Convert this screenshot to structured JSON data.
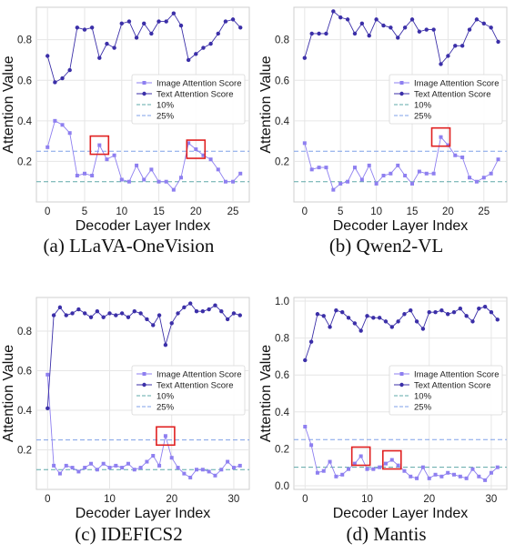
{
  "colors": {
    "image": "#8e7ff0",
    "text": "#3b2fa8",
    "line10": "#5fa8a8",
    "line25": "#7fa0e8",
    "highlight": "#e02020",
    "grid": "#e6e6e6"
  },
  "chart_data": [
    {
      "type": "line",
      "caption": "(a) LLaVA-OneVision",
      "xlabel": "Decoder Layer Index",
      "ylabel": "Attention Value",
      "xlim": [
        -1.5,
        27.2
      ],
      "ylim": [
        0.0,
        0.96
      ],
      "xticks": [
        0,
        5,
        10,
        15,
        20,
        25
      ],
      "yticks": [
        0.2,
        0.4,
        0.6,
        0.8
      ],
      "legend": {
        "position": "center-right",
        "entries": [
          "Image Attention Score",
          "Text Attention Score",
          "10%",
          "25%"
        ]
      },
      "hlines": {
        "ten": 0.1,
        "twentyfive": 0.25
      },
      "highlights": [
        7,
        20
      ],
      "series": [
        {
          "name": "Image Attention Score",
          "values": [
            0.27,
            0.4,
            0.38,
            0.34,
            0.13,
            0.14,
            0.13,
            0.28,
            0.21,
            0.23,
            0.11,
            0.1,
            0.18,
            0.11,
            0.16,
            0.1,
            0.1,
            0.06,
            0.12,
            0.29,
            0.26,
            0.23,
            0.21,
            0.16,
            0.1,
            0.1,
            0.14
          ]
        },
        {
          "name": "Text Attention Score",
          "values": [
            0.72,
            0.59,
            0.61,
            0.65,
            0.86,
            0.85,
            0.86,
            0.71,
            0.78,
            0.76,
            0.88,
            0.89,
            0.81,
            0.88,
            0.83,
            0.89,
            0.89,
            0.93,
            0.87,
            0.7,
            0.73,
            0.76,
            0.78,
            0.83,
            0.89,
            0.9,
            0.86
          ]
        }
      ]
    },
    {
      "type": "line",
      "caption": "(b) Qwen2-VL",
      "xlabel": "Decoder Layer Index",
      "ylabel": "Attention Value",
      "xlim": [
        -1.5,
        28.2
      ],
      "ylim": [
        0.0,
        0.96
      ],
      "xticks": [
        0,
        5,
        10,
        15,
        20,
        25
      ],
      "yticks": [
        0.2,
        0.4,
        0.6,
        0.8
      ],
      "legend": {
        "position": "center-right",
        "entries": [
          "Image Attention Score",
          "Text Attention Score",
          "10%",
          "25%"
        ]
      },
      "hlines": {
        "ten": 0.1,
        "twentyfive": 0.25
      },
      "highlights": [
        19
      ],
      "series": [
        {
          "name": "Image Attention Score",
          "values": [
            0.29,
            0.16,
            0.17,
            0.17,
            0.06,
            0.09,
            0.1,
            0.17,
            0.11,
            0.18,
            0.09,
            0.13,
            0.14,
            0.18,
            0.13,
            0.09,
            0.15,
            0.14,
            0.14,
            0.32,
            0.28,
            0.23,
            0.22,
            0.12,
            0.1,
            0.12,
            0.14,
            0.21
          ]
        },
        {
          "name": "Text Attention Score",
          "values": [
            0.71,
            0.83,
            0.83,
            0.83,
            0.94,
            0.91,
            0.9,
            0.83,
            0.88,
            0.82,
            0.9,
            0.87,
            0.86,
            0.81,
            0.86,
            0.9,
            0.84,
            0.85,
            0.85,
            0.68,
            0.72,
            0.77,
            0.77,
            0.85,
            0.9,
            0.88,
            0.86,
            0.79
          ]
        }
      ]
    },
    {
      "type": "line",
      "caption": "(c) IDEFICS2",
      "xlabel": "Decoder Layer Index",
      "ylabel": "Attention Value",
      "xlim": [
        -1.8,
        32.5
      ],
      "ylim": [
        0.0,
        0.97
      ],
      "xticks": [
        0,
        10,
        20,
        30
      ],
      "yticks": [
        0.2,
        0.4,
        0.6,
        0.8
      ],
      "legend": {
        "position": "center-right",
        "entries": [
          "Image Attention Score",
          "Text Attention Score",
          "10%",
          "25%"
        ]
      },
      "hlines": {
        "ten": 0.1,
        "twentyfive": 0.25
      },
      "highlights": [
        19
      ],
      "series": [
        {
          "name": "Image Attention Score",
          "values": [
            0.58,
            0.12,
            0.08,
            0.12,
            0.11,
            0.09,
            0.11,
            0.13,
            0.1,
            0.13,
            0.11,
            0.12,
            0.11,
            0.13,
            0.1,
            0.11,
            0.14,
            0.17,
            0.12,
            0.27,
            0.16,
            0.11,
            0.08,
            0.06,
            0.1,
            0.1,
            0.09,
            0.07,
            0.1,
            0.14,
            0.11,
            0.12
          ]
        },
        {
          "name": "Text Attention Score",
          "values": [
            0.41,
            0.88,
            0.92,
            0.88,
            0.89,
            0.91,
            0.89,
            0.87,
            0.9,
            0.87,
            0.89,
            0.88,
            0.89,
            0.87,
            0.9,
            0.89,
            0.86,
            0.83,
            0.88,
            0.73,
            0.84,
            0.89,
            0.92,
            0.94,
            0.9,
            0.9,
            0.91,
            0.93,
            0.9,
            0.86,
            0.89,
            0.88
          ]
        }
      ]
    },
    {
      "type": "line",
      "caption": "(d) Mantis",
      "xlabel": "Decoder Layer Index",
      "ylabel": "Attention Value",
      "xlim": [
        -1.8,
        32.5
      ],
      "ylim": [
        -0.02,
        1.02
      ],
      "xticks": [
        0,
        10,
        20,
        30
      ],
      "yticks": [
        0.0,
        0.2,
        0.4,
        0.6,
        0.8,
        1.0
      ],
      "legend": {
        "position": "center-right",
        "entries": [
          "Image Attention Score",
          "Text Attention Score",
          "10%",
          "25%"
        ]
      },
      "hlines": {
        "ten": 0.1,
        "twentyfive": 0.25
      },
      "highlights": [
        9,
        14
      ],
      "series": [
        {
          "name": "Image Attention Score",
          "values": [
            0.32,
            0.22,
            0.07,
            0.08,
            0.13,
            0.05,
            0.06,
            0.09,
            0.12,
            0.16,
            0.09,
            0.09,
            0.1,
            0.12,
            0.14,
            0.11,
            0.08,
            0.05,
            0.04,
            0.1,
            0.04,
            0.06,
            0.05,
            0.07,
            0.06,
            0.05,
            0.04,
            0.09,
            0.05,
            0.03,
            0.07,
            0.1
          ]
        },
        {
          "name": "Text Attention Score",
          "values": [
            0.68,
            0.78,
            0.93,
            0.92,
            0.86,
            0.95,
            0.94,
            0.91,
            0.88,
            0.84,
            0.92,
            0.91,
            0.91,
            0.89,
            0.86,
            0.89,
            0.93,
            0.95,
            0.89,
            0.85,
            0.94,
            0.94,
            0.95,
            0.93,
            0.94,
            0.96,
            0.92,
            0.89,
            0.96,
            0.97,
            0.94,
            0.9
          ]
        }
      ]
    }
  ]
}
